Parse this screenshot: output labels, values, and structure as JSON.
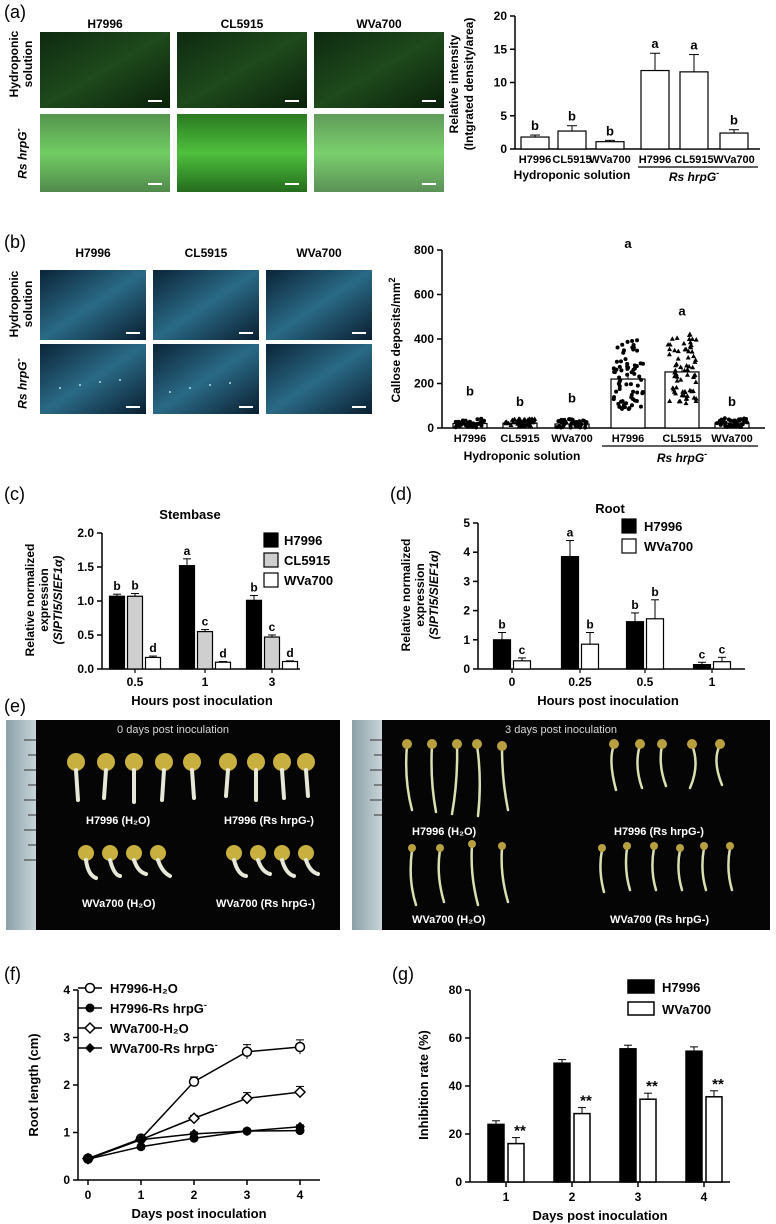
{
  "panels": {
    "a": {
      "label": "(a)",
      "columns": [
        "H7996",
        "CL5915",
        "WVa700"
      ],
      "row_label_1": [
        "Hydroponic",
        "solution"
      ],
      "row_label_2": "Rs hrpG",
      "row_label_2_sup": "-",
      "chart_data": {
        "type": "bar",
        "categories": [
          "H7996",
          "CL5915",
          "WVa700",
          "H7996",
          "CL5915",
          "WVa700"
        ],
        "values": [
          1.8,
          2.7,
          1.1,
          11.8,
          11.6,
          2.4
        ],
        "errors": [
          0.3,
          0.8,
          0.2,
          2.6,
          2.6,
          0.5
        ],
        "letters": [
          "b",
          "b",
          "b",
          "a",
          "a",
          "b"
        ],
        "ylabel": [
          "Relative intensity",
          "(Intgrated density/area)"
        ],
        "ylim": [
          0,
          20
        ],
        "yticks": [
          "0",
          "5",
          "10",
          "15",
          "20"
        ],
        "group_labels": [
          "Hydroponic solution",
          "Rs hrpG"
        ],
        "group_2_sup": "-"
      }
    },
    "b": {
      "label": "(b)",
      "columns": [
        "H7996",
        "CL5915",
        "WVa700"
      ],
      "row_label_1": [
        "Hydroponic",
        "solution"
      ],
      "row_label_2": "Rs hrpG",
      "row_label_2_sup": "-",
      "chart_data": {
        "type": "bar",
        "categories": [
          "H7996",
          "CL5915",
          "WVa700",
          "H7996",
          "CL5915",
          "WVa700"
        ],
        "values": [
          20,
          22,
          18,
          220,
          252,
          22
        ],
        "errors": [
          6,
          6,
          5,
          28,
          24,
          7
        ],
        "letters": [
          "b",
          "b",
          "b",
          "a",
          "a",
          "b"
        ],
        "ylabel": "Callose deposits/mm",
        "ylabel_sup": "2",
        "ylim": [
          0,
          800
        ],
        "yticks": [
          "0",
          "200",
          "400",
          "600",
          "800"
        ],
        "group_labels": [
          "Hydroponic solution",
          "Rs hrpG"
        ],
        "group_2_sup": "-"
      }
    },
    "c": {
      "label": "(c)",
      "chart_data": {
        "type": "bar",
        "title": "Stembase",
        "categories": [
          "0.5",
          "1",
          "3"
        ],
        "series": [
          {
            "name": "H7996",
            "values": [
              1.07,
              1.52,
              1.01
            ],
            "errors": [
              0.03,
              0.1,
              0.07
            ],
            "letters": [
              "b",
              "a",
              "b"
            ]
          },
          {
            "name": "CL5915",
            "values": [
              1.07,
              0.55,
              0.47
            ],
            "errors": [
              0.04,
              0.03,
              0.03
            ],
            "letters": [
              "b",
              "c",
              "c"
            ]
          },
          {
            "name": "WVa700",
            "values": [
              0.17,
              0.1,
              0.11
            ],
            "errors": [
              0.02,
              0.01,
              0.01
            ],
            "letters": [
              "d",
              "d",
              "d"
            ]
          }
        ],
        "xlabel": "Hours post inoculation",
        "ylabel": [
          "Relative normalized",
          "expression",
          "(SlPTI5/SlEF1α)"
        ],
        "ylim": [
          0,
          2.0
        ],
        "yticks": [
          "0.0",
          "0.5",
          "1.0",
          "1.5",
          "2.0"
        ]
      }
    },
    "d": {
      "label": "(d)",
      "chart_data": {
        "type": "bar",
        "title": "Root",
        "categories": [
          "0",
          "0.25",
          "0.5",
          "1"
        ],
        "series": [
          {
            "name": "H7996",
            "values": [
              1.0,
              3.85,
              1.62,
              0.15
            ],
            "errors": [
              0.25,
              0.55,
              0.3,
              0.08
            ],
            "letters": [
              "b",
              "a",
              "b",
              "c"
            ]
          },
          {
            "name": "WVa700",
            "values": [
              0.28,
              0.85,
              1.72,
              0.25
            ],
            "errors": [
              0.1,
              0.4,
              0.65,
              0.15
            ],
            "letters": [
              "c",
              "b",
              "b",
              "c"
            ]
          }
        ],
        "xlabel": "Hours post inoculation",
        "ylabel": [
          "Relative normalized",
          "expression",
          "(SlPTI5/SlEF1α)"
        ],
        "ylim": [
          0,
          5
        ],
        "yticks": [
          "0",
          "1",
          "2",
          "3",
          "4",
          "5"
        ]
      }
    },
    "e": {
      "label": "(e)",
      "left_title": "0 days post inoculation",
      "right_title": "3 days post inoculation",
      "left_labels": [
        "H7996 (H₂O)",
        "H7996 (Rs hrpG-)",
        "WVa700 (H₂O)",
        "WVa700 (Rs hrpG-)"
      ],
      "right_labels": [
        "H7996 (H₂O)",
        "H7996 (Rs hrpG-)",
        "WVa700 (H₂O)",
        "WVa700 (Rs hrpG-)"
      ]
    },
    "f": {
      "label": "(f)",
      "chart_data": {
        "type": "line",
        "x": [
          0,
          1,
          2,
          3,
          4
        ],
        "series": [
          {
            "name": "H7996-H₂O",
            "values": [
              0.45,
              0.87,
              2.07,
              2.7,
              2.8
            ],
            "errors": [
              0.03,
              0.05,
              0.1,
              0.15,
              0.15
            ],
            "marker": "open-circle"
          },
          {
            "name": "H7996-Rs hrpG",
            "name_sup": "-",
            "values": [
              0.44,
              0.7,
              0.88,
              1.03,
              1.04
            ],
            "errors": [
              0.03,
              0.03,
              0.04,
              0.04,
              0.05
            ],
            "marker": "filled-circle"
          },
          {
            "name": "WVa700-H₂O",
            "values": [
              0.45,
              0.85,
              1.3,
              1.72,
              1.85
            ],
            "errors": [
              0.03,
              0.05,
              0.06,
              0.12,
              0.12
            ],
            "marker": "open-diamond"
          },
          {
            "name": "WVa700-Rs hrpG",
            "name_sup": "-",
            "values": [
              0.44,
              0.85,
              0.97,
              1.03,
              1.12
            ],
            "errors": [
              0.03,
              0.04,
              0.04,
              0.04,
              0.04
            ],
            "marker": "filled-diamond"
          }
        ],
        "xlabel": "Days post inoculation",
        "ylabel": "Root length (cm)",
        "xlim": [
          0,
          4
        ],
        "ylim": [
          0,
          4
        ],
        "xticks": [
          "0",
          "1",
          "2",
          "3",
          "4"
        ],
        "yticks": [
          "0",
          "1",
          "2",
          "3",
          "4"
        ]
      }
    },
    "g": {
      "label": "(g)",
      "chart_data": {
        "type": "bar",
        "categories": [
          "1",
          "2",
          "3",
          "4"
        ],
        "series": [
          {
            "name": "H7996",
            "values": [
              24,
              49.5,
              55.5,
              54.5
            ],
            "errors": [
              1.5,
              1.5,
              1.5,
              1.8
            ]
          },
          {
            "name": "WVa700",
            "values": [
              16,
              28.5,
              34.5,
              35.5
            ],
            "errors": [
              2.5,
              2.5,
              2.5,
              2.5
            ]
          }
        ],
        "significance": [
          "**",
          "**",
          "**",
          "**"
        ],
        "xlabel": "Days post inoculation",
        "ylabel": "Inhibition rate (%)",
        "ylim": [
          0,
          80
        ],
        "yticks": [
          "0",
          "20",
          "40",
          "60",
          "80"
        ]
      }
    }
  }
}
